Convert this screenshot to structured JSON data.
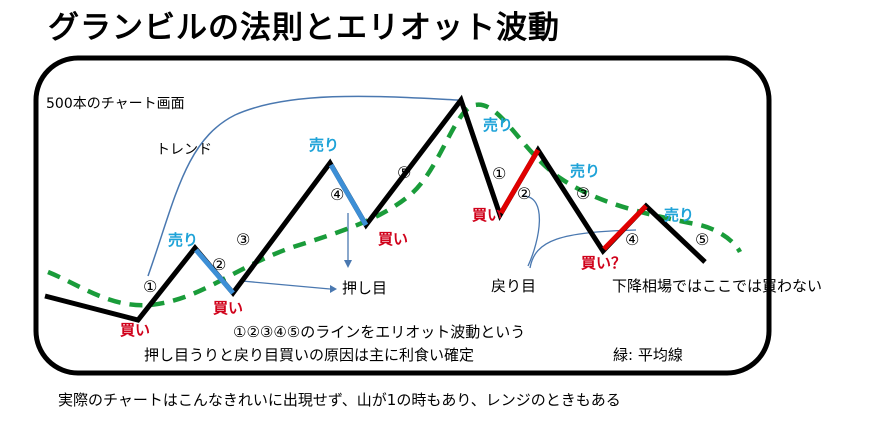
{
  "title": "グランビルの法則とエリオット波動",
  "footer": "実際のチャートはこんなきれいに出現せず、山が1の時もあり、レンジのときもある",
  "labels": {
    "chart_note": "500本のチャート画面",
    "trend": "トレンド",
    "pullback": "押し目",
    "rebound": "戻り目",
    "no_buy_downtrend": "下降相場ではここでは買わない",
    "elliott_note": "①②③④⑤のラインをエリオット波動という",
    "cause_note": "押し目うりと戻り目買いの原因は主に利食い確定",
    "green_legend": "緑: 平均線"
  },
  "signals": {
    "buy": "買い",
    "sell": "売り",
    "buy_question": "買い？"
  },
  "waves": [
    "①",
    "②",
    "③",
    "④",
    "⑤"
  ],
  "colors": {
    "price_line": "#000000",
    "moving_average": "#1a9c3a",
    "sell_text": "#1fa3d8",
    "buy_text": "#d0021b",
    "blue_segment": "#3d8fd6",
    "red_segment": "#e00000",
    "annotation": "#4a78b0"
  }
}
